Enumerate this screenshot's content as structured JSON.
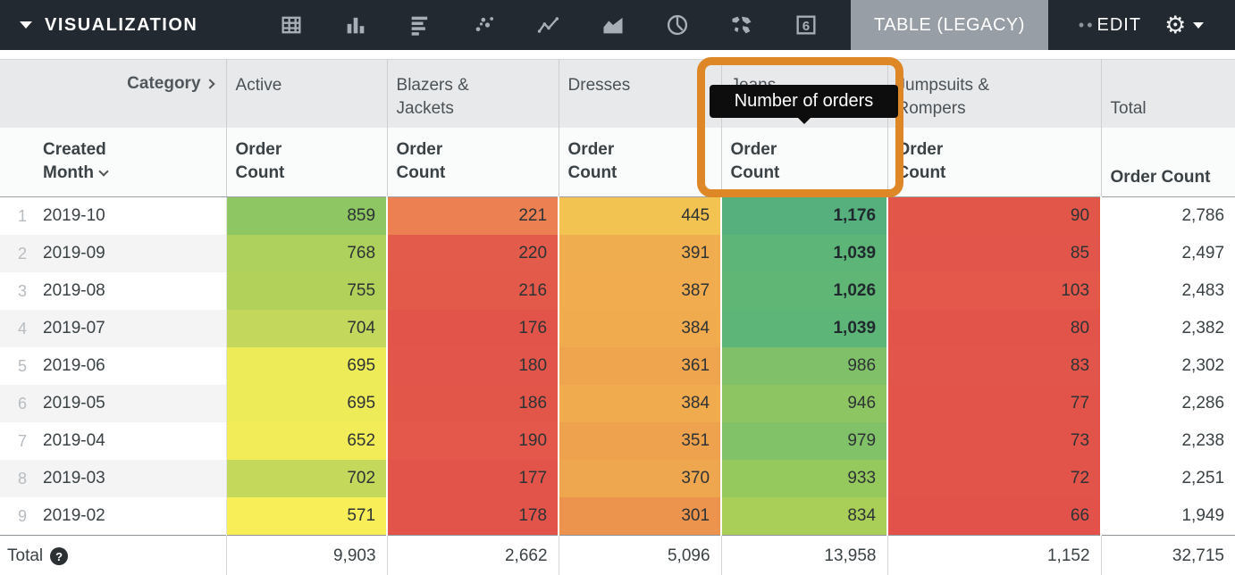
{
  "toolbar": {
    "title": "VISUALIZATION",
    "selected_viz": "TABLE (LEGACY)",
    "edit_label": "EDIT",
    "single_value_glyph": "6",
    "gear_glyph": "⚙",
    "icons": [
      "table-icon",
      "bar-chart-icon",
      "horizontal-bar-icon",
      "scatter-icon",
      "line-chart-icon",
      "area-chart-icon",
      "pie-chart-icon",
      "map-icon",
      "single-value-icon"
    ]
  },
  "colors": {
    "toolbar_bg": "#232930",
    "chip_bg": "#979ea5",
    "accent_orange": "#dd8727",
    "tooltip_bg": "#0d0d0d",
    "header_bg": "#e8e9ea"
  },
  "tooltip": {
    "text": "Number of orders"
  },
  "table": {
    "pivot_field": "Category",
    "row_field": "Created Month",
    "measure": "Order Count",
    "columns": [
      "Active",
      "Blazers & Jackets",
      "Dresses",
      "Jeans",
      "Jumpsuits & Rompers"
    ],
    "total_label": "Total",
    "rows": [
      {
        "index": "1",
        "month": "2019-10",
        "cells": [
          {
            "v": "859",
            "bg": "#8dc662"
          },
          {
            "v": "221",
            "bg": "#ec8052"
          },
          {
            "v": "445",
            "bg": "#f2c350"
          },
          {
            "v": "1,176",
            "bg": "#55b07e",
            "bold": true
          },
          {
            "v": "90",
            "bg": "#e25649"
          }
        ],
        "total": "2,786"
      },
      {
        "index": "2",
        "month": "2019-09",
        "cells": [
          {
            "v": "768",
            "bg": "#aed05c"
          },
          {
            "v": "220",
            "bg": "#e35b4a"
          },
          {
            "v": "391",
            "bg": "#f0ad4f"
          },
          {
            "v": "1,039",
            "bg": "#5db577",
            "bold": true
          },
          {
            "v": "85",
            "bg": "#e2554a"
          }
        ],
        "total": "2,497"
      },
      {
        "index": "3",
        "month": "2019-08",
        "cells": [
          {
            "v": "755",
            "bg": "#b2d15b"
          },
          {
            "v": "216",
            "bg": "#e35a4a"
          },
          {
            "v": "387",
            "bg": "#f0ac4f"
          },
          {
            "v": "1,026",
            "bg": "#60b675",
            "bold": true
          },
          {
            "v": "103",
            "bg": "#e3584a"
          }
        ],
        "total": "2,483"
      },
      {
        "index": "4",
        "month": "2019-07",
        "cells": [
          {
            "v": "704",
            "bg": "#c3d75c"
          },
          {
            "v": "176",
            "bg": "#e2544a"
          },
          {
            "v": "384",
            "bg": "#f0ab4f"
          },
          {
            "v": "1,039",
            "bg": "#5db577",
            "bold": true
          },
          {
            "v": "80",
            "bg": "#e2544a"
          }
        ],
        "total": "2,382"
      },
      {
        "index": "5",
        "month": "2019-06",
        "cells": [
          {
            "v": "695",
            "bg": "#eeeb59"
          },
          {
            "v": "180",
            "bg": "#e2554a"
          },
          {
            "v": "361",
            "bg": "#efa54e"
          },
          {
            "v": "986",
            "bg": "#7fc068"
          },
          {
            "v": "83",
            "bg": "#e2554a"
          }
        ],
        "total": "2,302"
      },
      {
        "index": "6",
        "month": "2019-05",
        "cells": [
          {
            "v": "695",
            "bg": "#eeeb59"
          },
          {
            "v": "186",
            "bg": "#e2564a"
          },
          {
            "v": "384",
            "bg": "#f0ab4f"
          },
          {
            "v": "946",
            "bg": "#8cc561"
          },
          {
            "v": "77",
            "bg": "#e2544a"
          }
        ],
        "total": "2,286"
      },
      {
        "index": "7",
        "month": "2019-04",
        "cells": [
          {
            "v": "652",
            "bg": "#f2ec58"
          },
          {
            "v": "190",
            "bg": "#e3584a"
          },
          {
            "v": "351",
            "bg": "#eea24e"
          },
          {
            "v": "979",
            "bg": "#81c167"
          },
          {
            "v": "73",
            "bg": "#e2534a"
          }
        ],
        "total": "2,238"
      },
      {
        "index": "8",
        "month": "2019-03",
        "cells": [
          {
            "v": "702",
            "bg": "#c4d85c"
          },
          {
            "v": "177",
            "bg": "#e2544a"
          },
          {
            "v": "370",
            "bg": "#efa74f"
          },
          {
            "v": "933",
            "bg": "#96c95d"
          },
          {
            "v": "72",
            "bg": "#e2534a"
          }
        ],
        "total": "2,251"
      },
      {
        "index": "9",
        "month": "2019-02",
        "cells": [
          {
            "v": "571",
            "bg": "#f7ee58"
          },
          {
            "v": "178",
            "bg": "#e2544a"
          },
          {
            "v": "301",
            "bg": "#ec934d"
          },
          {
            "v": "834",
            "bg": "#aacf58"
          },
          {
            "v": "66",
            "bg": "#e2524a"
          }
        ],
        "total": "1,949"
      }
    ],
    "totals": {
      "label": "Total",
      "help_glyph": "?",
      "values": [
        "9,903",
        "2,662",
        "5,096",
        "13,958",
        "1,152"
      ],
      "grand": "32,715"
    }
  }
}
